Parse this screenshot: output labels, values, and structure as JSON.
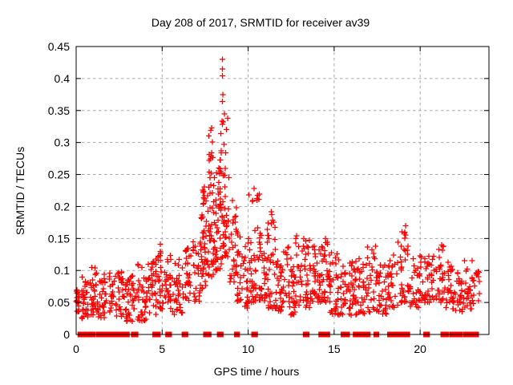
{
  "title": "Day 208 of 2017, SRMTID for receiver av39",
  "x_axis": {
    "label": "GPS time / hours",
    "min": 0,
    "max": 24,
    "ticks": [
      0,
      5,
      10,
      15,
      20
    ],
    "tick_labels": [
      "0",
      "5",
      "10",
      "15",
      "20"
    ]
  },
  "y_axis": {
    "label": "SRMTID / TECUs",
    "min": 0,
    "max": 0.45,
    "ticks": [
      0,
      0.05,
      0.1,
      0.15,
      0.2,
      0.25,
      0.3,
      0.35,
      0.4,
      0.45
    ],
    "tick_labels": [
      "0",
      "0.05",
      "0.1",
      "0.15",
      "0.2",
      "0.25",
      "0.3",
      "0.35",
      "0.4",
      "0.45"
    ]
  },
  "colors": {
    "marker": "#ff0000",
    "grid": "#a6a6a6",
    "border": "#000000",
    "background": "#ffffff",
    "text": "#000000"
  },
  "chart_data": {
    "type": "scatter",
    "title": "Day 208 of 2017, SRMTID for receiver av39",
    "xlabel": "GPS time / hours",
    "ylabel": "SRMTID / TECUs",
    "xlim": [
      0,
      24
    ],
    "ylim": [
      0,
      0.45
    ],
    "grid": true,
    "legend": "none",
    "marker": "plus",
    "marker_color": "#ff0000",
    "seed": 42,
    "peak_points": [
      [
        8.5,
        0.43
      ],
      [
        8.5,
        0.415
      ],
      [
        8.51,
        0.404
      ],
      [
        8.53,
        0.375
      ],
      [
        8.5,
        0.364
      ],
      [
        8.63,
        0.345
      ],
      [
        8.8,
        0.338
      ],
      [
        7.42,
        0.224
      ],
      [
        7.45,
        0.212
      ],
      [
        7.4,
        0.205
      ],
      [
        10.05,
        0.218
      ],
      [
        10.35,
        0.228
      ],
      [
        10.52,
        0.21
      ],
      [
        11.35,
        0.192
      ],
      [
        13.55,
        0.147
      ],
      [
        14.5,
        0.15
      ],
      [
        17.4,
        0.138
      ],
      [
        19.15,
        0.17
      ],
      [
        19.1,
        0.16
      ]
    ],
    "clusters": [
      {
        "x0": 0.0,
        "x1": 0.2,
        "y0": 0.035,
        "y1": 0.075,
        "n": 18,
        "bias": 1.2
      },
      {
        "x0": 0.3,
        "x1": 0.7,
        "y0": 0.025,
        "y1": 0.09,
        "n": 30,
        "bias": 1.3
      },
      {
        "x0": 0.8,
        "x1": 1.3,
        "y0": 0.03,
        "y1": 0.105,
        "n": 34,
        "bias": 1.3
      },
      {
        "x0": 1.3,
        "x1": 1.75,
        "y0": 0.025,
        "y1": 0.095,
        "n": 28,
        "bias": 1.3
      },
      {
        "x0": 1.9,
        "x1": 2.3,
        "y0": 0.035,
        "y1": 0.1,
        "n": 20,
        "bias": 1.2
      },
      {
        "x0": 2.3,
        "x1": 2.9,
        "y0": 0.025,
        "y1": 0.1,
        "n": 34,
        "bias": 1.3
      },
      {
        "x0": 2.9,
        "x1": 3.45,
        "y0": 0.02,
        "y1": 0.1,
        "n": 34,
        "bias": 1.3
      },
      {
        "x0": 3.5,
        "x1": 4.15,
        "y0": 0.02,
        "y1": 0.11,
        "n": 38,
        "bias": 1.3
      },
      {
        "x0": 4.2,
        "x1": 4.65,
        "y0": 0.03,
        "y1": 0.12,
        "n": 30,
        "bias": 1.3
      },
      {
        "x0": 4.6,
        "x1": 5.05,
        "y0": 0.04,
        "y1": 0.145,
        "n": 34,
        "bias": 1.4
      },
      {
        "x0": 5.1,
        "x1": 5.5,
        "y0": 0.04,
        "y1": 0.13,
        "n": 28,
        "bias": 1.3
      },
      {
        "x0": 5.6,
        "x1": 6.25,
        "y0": 0.03,
        "y1": 0.12,
        "n": 34,
        "bias": 1.3
      },
      {
        "x0": 6.35,
        "x1": 6.7,
        "y0": 0.05,
        "y1": 0.135,
        "n": 28,
        "bias": 1.2
      },
      {
        "x0": 6.8,
        "x1": 7.25,
        "y0": 0.05,
        "y1": 0.15,
        "n": 30,
        "bias": 1.2
      },
      {
        "x0": 7.25,
        "x1": 7.6,
        "y0": 0.07,
        "y1": 0.19,
        "n": 34,
        "bias": 1.2
      },
      {
        "x0": 7.3,
        "x1": 7.55,
        "y0": 0.195,
        "y1": 0.24,
        "n": 7,
        "bias": 1.0
      },
      {
        "x0": 7.6,
        "x1": 8.05,
        "y0": 0.09,
        "y1": 0.255,
        "n": 44,
        "bias": 1.5
      },
      {
        "x0": 7.62,
        "x1": 8.0,
        "y0": 0.27,
        "y1": 0.335,
        "n": 10,
        "bias": 1.0
      },
      {
        "x0": 8.05,
        "x1": 8.45,
        "y0": 0.1,
        "y1": 0.26,
        "n": 44,
        "bias": 1.5
      },
      {
        "x0": 8.35,
        "x1": 8.75,
        "y0": 0.27,
        "y1": 0.34,
        "n": 11,
        "bias": 1.0
      },
      {
        "x0": 8.45,
        "x1": 8.9,
        "y0": 0.12,
        "y1": 0.265,
        "n": 36,
        "bias": 1.4
      },
      {
        "x0": 8.9,
        "x1": 9.35,
        "y0": 0.08,
        "y1": 0.21,
        "n": 28,
        "bias": 1.4
      },
      {
        "x0": 9.35,
        "x1": 9.75,
        "y0": 0.05,
        "y1": 0.16,
        "n": 24,
        "bias": 1.3
      },
      {
        "x0": 9.75,
        "x1": 10.2,
        "y0": 0.04,
        "y1": 0.15,
        "n": 30,
        "bias": 1.4
      },
      {
        "x0": 10.2,
        "x1": 10.65,
        "y0": 0.05,
        "y1": 0.23,
        "n": 30,
        "bias": 1.6
      },
      {
        "x0": 10.65,
        "x1": 11.1,
        "y0": 0.05,
        "y1": 0.16,
        "n": 34,
        "bias": 1.4
      },
      {
        "x0": 11.1,
        "x1": 11.6,
        "y0": 0.04,
        "y1": 0.19,
        "n": 34,
        "bias": 1.5
      },
      {
        "x0": 11.6,
        "x1": 12.1,
        "y0": 0.035,
        "y1": 0.13,
        "n": 34,
        "bias": 1.3
      },
      {
        "x0": 12.1,
        "x1": 12.7,
        "y0": 0.03,
        "y1": 0.145,
        "n": 36,
        "bias": 1.3
      },
      {
        "x0": 12.7,
        "x1": 13.3,
        "y0": 0.035,
        "y1": 0.16,
        "n": 30,
        "bias": 1.4
      },
      {
        "x0": 13.3,
        "x1": 13.75,
        "y0": 0.04,
        "y1": 0.15,
        "n": 30,
        "bias": 1.3
      },
      {
        "x0": 13.8,
        "x1": 14.3,
        "y0": 0.05,
        "y1": 0.14,
        "n": 34,
        "bias": 1.3
      },
      {
        "x0": 14.3,
        "x1": 14.75,
        "y0": 0.05,
        "y1": 0.145,
        "n": 34,
        "bias": 1.3
      },
      {
        "x0": 14.75,
        "x1": 15.5,
        "y0": 0.03,
        "y1": 0.13,
        "n": 40,
        "bias": 1.4
      },
      {
        "x0": 15.5,
        "x1": 16.2,
        "y0": 0.03,
        "y1": 0.115,
        "n": 40,
        "bias": 1.3
      },
      {
        "x0": 16.2,
        "x1": 16.9,
        "y0": 0.03,
        "y1": 0.12,
        "n": 40,
        "bias": 1.3
      },
      {
        "x0": 16.9,
        "x1": 17.5,
        "y0": 0.035,
        "y1": 0.14,
        "n": 30,
        "bias": 1.4
      },
      {
        "x0": 17.5,
        "x1": 18.1,
        "y0": 0.03,
        "y1": 0.11,
        "n": 30,
        "bias": 1.3
      },
      {
        "x0": 18.1,
        "x1": 18.7,
        "y0": 0.04,
        "y1": 0.125,
        "n": 30,
        "bias": 1.3
      },
      {
        "x0": 18.7,
        "x1": 19.35,
        "y0": 0.05,
        "y1": 0.175,
        "n": 34,
        "bias": 1.5
      },
      {
        "x0": 19.4,
        "x1": 19.9,
        "y0": 0.04,
        "y1": 0.12,
        "n": 24,
        "bias": 1.3
      },
      {
        "x0": 19.9,
        "x1": 20.35,
        "y0": 0.05,
        "y1": 0.125,
        "n": 24,
        "bias": 1.3
      },
      {
        "x0": 20.4,
        "x1": 20.8,
        "y0": 0.05,
        "y1": 0.125,
        "n": 24,
        "bias": 1.3
      },
      {
        "x0": 20.9,
        "x1": 21.45,
        "y0": 0.05,
        "y1": 0.14,
        "n": 30,
        "bias": 1.4
      },
      {
        "x0": 21.5,
        "x1": 22.0,
        "y0": 0.04,
        "y1": 0.115,
        "n": 28,
        "bias": 1.3
      },
      {
        "x0": 22.0,
        "x1": 22.5,
        "y0": 0.035,
        "y1": 0.1,
        "n": 24,
        "bias": 1.3
      },
      {
        "x0": 22.5,
        "x1": 23.1,
        "y0": 0.04,
        "y1": 0.12,
        "n": 30,
        "bias": 1.3
      },
      {
        "x0": 23.1,
        "x1": 23.45,
        "y0": 0.05,
        "y1": 0.1,
        "n": 14,
        "bias": 1.2
      }
    ],
    "baseline_segments": [
      [
        0.2,
        0.4
      ],
      [
        0.5,
        0.7
      ],
      [
        0.8,
        1.0
      ],
      [
        1.25,
        1.45
      ],
      [
        1.5,
        1.8
      ],
      [
        2.0,
        2.3
      ],
      [
        2.45,
        2.6
      ],
      [
        2.8,
        3.0
      ],
      [
        3.3,
        3.5
      ],
      [
        4.55,
        4.8
      ],
      [
        5.3,
        5.45
      ],
      [
        6.25,
        6.4
      ],
      [
        7.5,
        7.75
      ],
      [
        8.3,
        8.45
      ],
      [
        9.3,
        9.4
      ],
      [
        10.3,
        10.45
      ],
      [
        13.3,
        13.45
      ],
      [
        14.2,
        14.4
      ],
      [
        14.55,
        14.65
      ],
      [
        15.5,
        15.8
      ],
      [
        16.2,
        16.5
      ],
      [
        16.6,
        17.0
      ],
      [
        17.4,
        17.5
      ],
      [
        18.2,
        18.5
      ],
      [
        18.6,
        18.8
      ],
      [
        19.0,
        19.3
      ],
      [
        20.3,
        20.45
      ],
      [
        21.3,
        21.55
      ],
      [
        21.8,
        22.05
      ],
      [
        22.1,
        22.35
      ],
      [
        22.6,
        22.85
      ],
      [
        23.0,
        23.3
      ]
    ]
  }
}
